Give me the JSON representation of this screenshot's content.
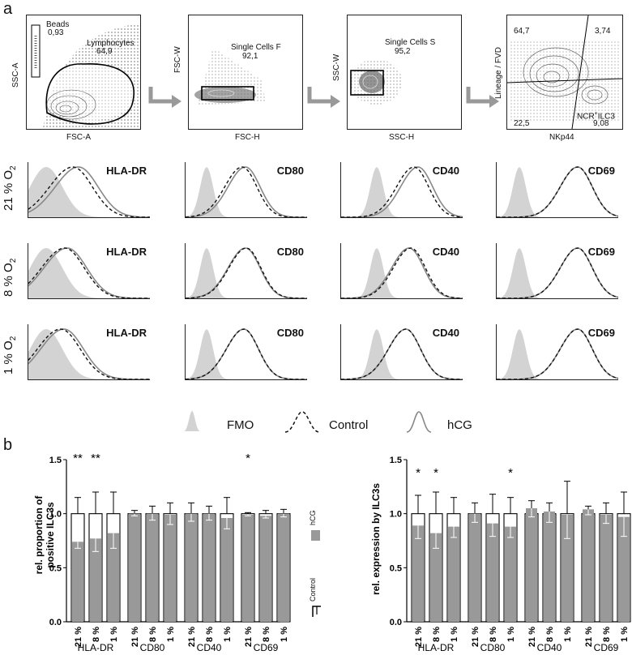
{
  "panel_a": {
    "letter": "a",
    "gating": [
      {
        "y_axis": "SSC-A",
        "x_axis": "FSC-A",
        "gates": [
          {
            "label": "Beads",
            "value": "0,93"
          },
          {
            "label": "Lymphocytes",
            "value": "64,9"
          }
        ]
      },
      {
        "y_axis": "FSC-W",
        "x_axis": "FSC-H",
        "gates": [
          {
            "label": "Single Cells F",
            "value": "92,1"
          }
        ]
      },
      {
        "y_axis": "SSC-W",
        "x_axis": "SSC-H",
        "gates": [
          {
            "label": "Single Cells S",
            "value": "95,2"
          }
        ]
      },
      {
        "y_axis": "Lineage / FVD",
        "x_axis": "NKp44",
        "quadrants": {
          "top_left": "64,7",
          "top_right": "3,74",
          "bottom_left": "22,5",
          "bottom_right": "9,08"
        },
        "gate_label_main": "NCR",
        "gate_label_sup": "+",
        "gate_label_tail": "ILC3"
      }
    ],
    "rows": [
      {
        "o2": "21 %",
        "unit": "O",
        "sub": "2"
      },
      {
        "o2": "8 %",
        "unit": "O",
        "sub": "2"
      },
      {
        "o2": "1 %",
        "unit": "O",
        "sub": "2"
      }
    ],
    "markers": [
      "HLA-DR",
      "CD80",
      "CD40",
      "CD69"
    ],
    "legend": {
      "fmo": "FMO",
      "control": "Control",
      "hcg": "hCG"
    }
  },
  "panel_b": {
    "letter": "b"
  },
  "chart_data": [
    {
      "type": "bar",
      "ylabel_line1": "rel. proportion of",
      "ylabel_line2": "positive ILC3s",
      "ylim": [
        0,
        1.5
      ],
      "yticks": [
        "0.0",
        "0.5",
        "1.0",
        "1.5"
      ],
      "groups": [
        "HLA-DR",
        "CD80",
        "CD40",
        "CD69"
      ],
      "categories": [
        "21 %",
        "8 %",
        "1 %",
        "21 %",
        "8 %",
        "1 %",
        "21 %",
        "8 %",
        "1 %",
        "21 %",
        "8 %",
        "1 %"
      ],
      "series": [
        {
          "name": "Control",
          "values": [
            1,
            1,
            1,
            1,
            1,
            1,
            1,
            1,
            1,
            1,
            1,
            1
          ],
          "error": [
            0.15,
            0.2,
            0.2,
            0.03,
            0.07,
            0.1,
            0.1,
            0.07,
            0.15,
            0.01,
            0.03,
            0.04
          ]
        },
        {
          "name": "hCG",
          "values": [
            0.74,
            0.77,
            0.82,
            1.0,
            1.0,
            0.99,
            1.0,
            1.0,
            0.96,
            0.99,
            0.98,
            1.0
          ],
          "error": [
            0.06,
            0.12,
            0.14,
            0.02,
            0.06,
            0.09,
            0.07,
            0.06,
            0.1,
            0.01,
            0.02,
            0.03
          ]
        }
      ],
      "significance": [
        {
          "index": 0,
          "label": "**"
        },
        {
          "index": 1,
          "label": "**"
        },
        {
          "index": 9,
          "label": "*"
        }
      ]
    },
    {
      "type": "bar",
      "ylabel_line1": "rel. expression by ILC3s",
      "ylim": [
        0,
        1.5
      ],
      "yticks": [
        "0.0",
        "0.5",
        "1.0",
        "1.5"
      ],
      "groups": [
        "HLA-DR",
        "CD80",
        "CD40",
        "CD69"
      ],
      "categories": [
        "21 %",
        "8 %",
        "1 %",
        "21 %",
        "8 %",
        "1 %",
        "21 %",
        "8 %",
        "1 %",
        "21 %",
        "8 %",
        "1 %"
      ],
      "series": [
        {
          "name": "Control",
          "values": [
            1,
            1,
            1,
            1,
            1,
            1,
            1,
            1,
            1,
            1,
            1,
            1
          ],
          "error": [
            0.17,
            0.2,
            0.15,
            0.1,
            0.18,
            0.15,
            0.12,
            0.1,
            0.3,
            0.07,
            0.1,
            0.2
          ]
        },
        {
          "name": "hCG",
          "values": [
            0.89,
            0.82,
            0.88,
            1.0,
            0.91,
            0.88,
            1.05,
            1.02,
            0.99,
            1.04,
            0.99,
            0.97
          ],
          "error": [
            0.12,
            0.14,
            0.1,
            0.08,
            0.12,
            0.1,
            0.08,
            0.1,
            0.22,
            0.05,
            0.08,
            0.18
          ]
        }
      ],
      "significance": [
        {
          "index": 0,
          "label": "*"
        },
        {
          "index": 1,
          "label": "*"
        },
        {
          "index": 5,
          "label": "*"
        }
      ]
    }
  ],
  "panel_b_legend": {
    "hcg": "hCG",
    "control": "Control"
  },
  "colors": {
    "bar_fill": "#999999",
    "fmo_fill": "#d3d3d3",
    "hcg_line": "#888888",
    "control_line": "#111111"
  }
}
